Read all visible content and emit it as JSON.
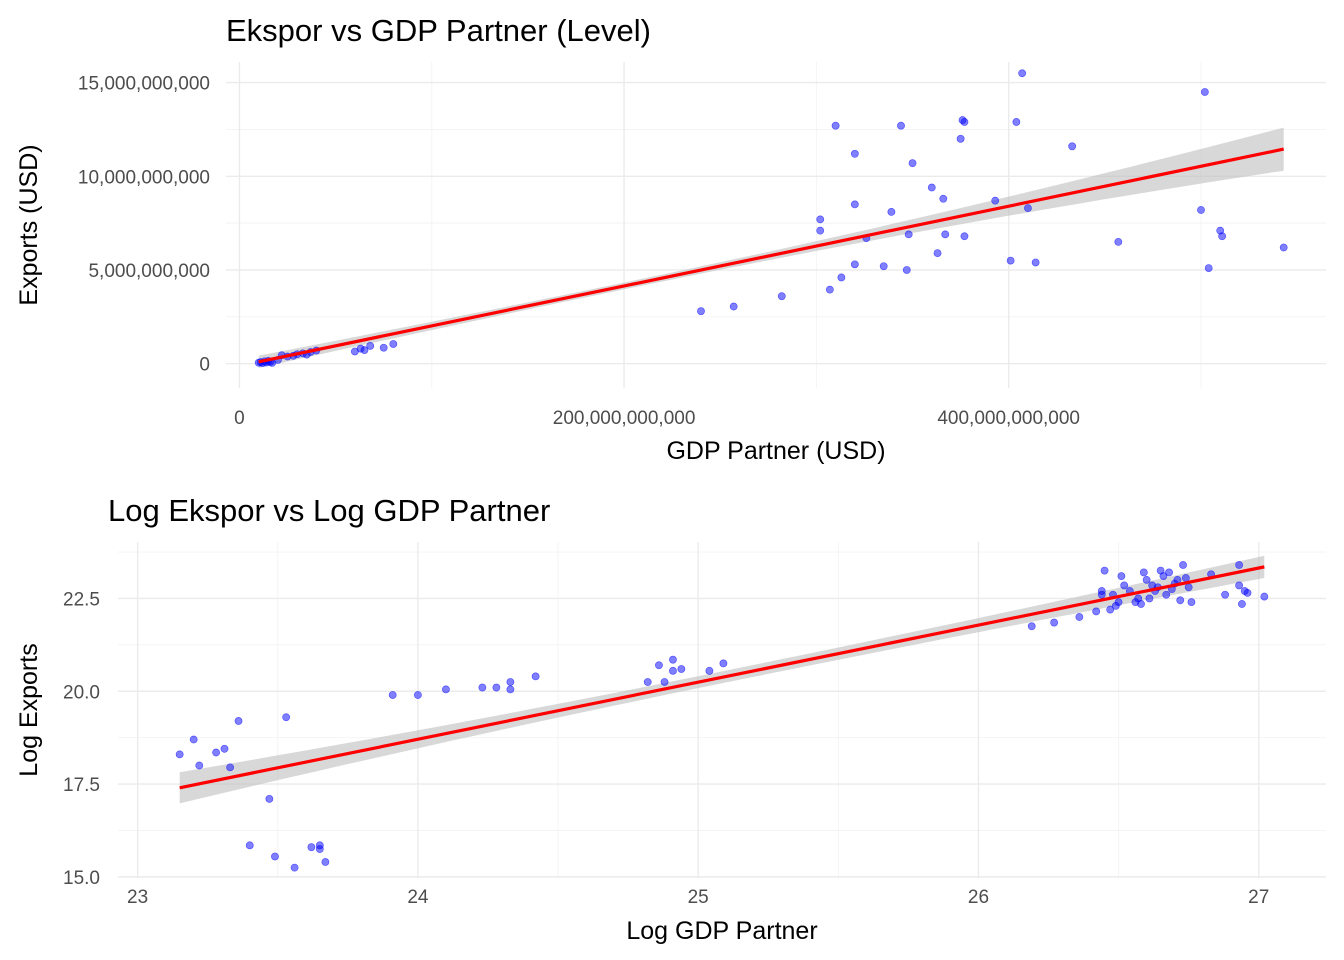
{
  "chart_data": [
    {
      "type": "scatter",
      "title": "Ekspor vs GDP Partner (Level)",
      "xlabel": "GDP Partner (USD)",
      "ylabel": "Exports (USD)",
      "xlim": [
        -7000000000,
        565000000000
      ],
      "ylim": [
        -1300000000,
        16100000000
      ],
      "x_ticks": [
        0,
        200000000000,
        400000000000
      ],
      "x_tick_labels": [
        "0",
        "200,000,000,000",
        "400,000,000,000"
      ],
      "x_minor": [
        100000000000,
        300000000000,
        500000000000
      ],
      "y_ticks": [
        0,
        5000000000,
        10000000000,
        15000000000
      ],
      "y_tick_labels": [
        "0",
        "5,000,000,000",
        "10,000,000,000",
        "15,000,000,000"
      ],
      "y_minor": [
        2500000000,
        7500000000,
        12500000000
      ],
      "grid": true,
      "point_color": "#0000ff",
      "line_color": "#ff0000",
      "ribbon_color": "#bebebe",
      "points": [
        [
          10000000000,
          50000000
        ],
        [
          11000000000,
          80000000
        ],
        [
          12000000000,
          30000000
        ],
        [
          13000000000,
          120000000
        ],
        [
          14000000000,
          60000000
        ],
        [
          15000000000,
          150000000
        ],
        [
          16000000000,
          90000000
        ],
        [
          17000000000,
          40000000
        ],
        [
          20000000000,
          200000000
        ],
        [
          22000000000,
          450000000
        ],
        [
          25000000000,
          380000000
        ],
        [
          28000000000,
          420000000
        ],
        [
          30000000000,
          500000000
        ],
        [
          33000000000,
          550000000
        ],
        [
          35000000000,
          480000000
        ],
        [
          37000000000,
          620000000
        ],
        [
          40000000000,
          700000000
        ],
        [
          60000000000,
          650000000
        ],
        [
          63000000000,
          800000000
        ],
        [
          65000000000,
          720000000
        ],
        [
          68000000000,
          950000000
        ],
        [
          75000000000,
          850000000
        ],
        [
          80000000000,
          1050000000
        ],
        [
          240000000000,
          2800000000
        ],
        [
          257000000000,
          3050000000
        ],
        [
          282000000000,
          3600000000
        ],
        [
          302000000000,
          7700000000
        ],
        [
          302000000000,
          7100000000
        ],
        [
          307000000000,
          3950000000
        ],
        [
          310000000000,
          12700000000
        ],
        [
          313000000000,
          4600000000
        ],
        [
          320000000000,
          5300000000
        ],
        [
          320000000000,
          11200000000
        ],
        [
          320000000000,
          8500000000
        ],
        [
          326000000000,
          6700000000
        ],
        [
          335000000000,
          5200000000
        ],
        [
          339000000000,
          8100000000
        ],
        [
          344000000000,
          12700000000
        ],
        [
          347000000000,
          5000000000
        ],
        [
          348000000000,
          6900000000
        ],
        [
          350000000000,
          10700000000
        ],
        [
          360000000000,
          9400000000
        ],
        [
          363000000000,
          5900000000
        ],
        [
          366000000000,
          8800000000
        ],
        [
          367000000000,
          6900000000
        ],
        [
          375000000000,
          12000000000
        ],
        [
          376000000000,
          13000000000
        ],
        [
          377000000000,
          12900000000
        ],
        [
          377000000000,
          6800000000
        ],
        [
          393000000000,
          8700000000
        ],
        [
          401000000000,
          5500000000
        ],
        [
          404000000000,
          12900000000
        ],
        [
          407000000000,
          15500000000
        ],
        [
          410000000000,
          8300000000
        ],
        [
          414000000000,
          5400000000
        ],
        [
          433000000000,
          11600000000
        ],
        [
          457000000000,
          6500000000
        ],
        [
          500000000000,
          8200000000
        ],
        [
          502000000000,
          14500000000
        ],
        [
          504000000000,
          5100000000
        ],
        [
          510000000000,
          7100000000
        ],
        [
          511000000000,
          6800000000
        ],
        [
          543000000000,
          6200000000
        ]
      ],
      "fit_start": [
        10000000000,
        100000000
      ],
      "fit_end": [
        543000000000,
        11450000000
      ],
      "se_start": 330000000,
      "se_mid": 180000000,
      "se_end": 1150000000,
      "x_center": 200000000000
    },
    {
      "type": "scatter",
      "title": "Log Ekspor vs Log GDP Partner",
      "xlabel": "Log GDP Partner",
      "ylabel": "Log Exports",
      "xlim": [
        22.93,
        27.24
      ],
      "ylim": [
        14.97,
        24.02
      ],
      "x_ticks": [
        23,
        24,
        25,
        26,
        27
      ],
      "x_tick_labels": [
        "23",
        "24",
        "25",
        "26",
        "27"
      ],
      "x_minor": [
        23.5,
        24.5,
        25.5,
        26.5
      ],
      "y_ticks": [
        15,
        17.5,
        20,
        22.5
      ],
      "y_tick_labels": [
        "15.0",
        "17.5",
        "20.0",
        "22.5"
      ],
      "y_minor": [
        16.25,
        18.75,
        21.25,
        23.75
      ],
      "grid": true,
      "point_color": "#0000ff",
      "line_color": "#ff0000",
      "ribbon_color": "#bebebe",
      "points": [
        [
          23.15,
          18.3
        ],
        [
          23.2,
          18.7
        ],
        [
          23.22,
          18.0
        ],
        [
          23.28,
          18.35
        ],
        [
          23.31,
          18.45
        ],
        [
          23.33,
          17.95
        ],
        [
          23.36,
          19.2
        ],
        [
          23.4,
          15.85
        ],
        [
          23.47,
          17.1
        ],
        [
          23.49,
          15.55
        ],
        [
          23.53,
          19.3
        ],
        [
          23.56,
          15.25
        ],
        [
          23.62,
          15.8
        ],
        [
          23.65,
          15.75
        ],
        [
          23.65,
          15.85
        ],
        [
          23.67,
          15.4
        ],
        [
          23.91,
          19.9
        ],
        [
          24.0,
          19.9
        ],
        [
          24.1,
          20.05
        ],
        [
          24.23,
          20.1
        ],
        [
          24.28,
          20.1
        ],
        [
          24.33,
          20.25
        ],
        [
          24.33,
          20.05
        ],
        [
          24.42,
          20.4
        ],
        [
          24.82,
          20.25
        ],
        [
          24.86,
          20.7
        ],
        [
          24.88,
          20.25
        ],
        [
          24.91,
          20.55
        ],
        [
          24.91,
          20.85
        ],
        [
          24.94,
          20.6
        ],
        [
          25.04,
          20.55
        ],
        [
          25.09,
          20.75
        ],
        [
          26.19,
          21.75
        ],
        [
          26.27,
          21.85
        ],
        [
          26.36,
          22.0
        ],
        [
          26.42,
          22.15
        ],
        [
          26.44,
          22.6
        ],
        [
          26.44,
          22.7
        ],
        [
          26.45,
          23.25
        ],
        [
          26.47,
          22.2
        ],
        [
          26.48,
          22.6
        ],
        [
          26.49,
          22.3
        ],
        [
          26.5,
          22.4
        ],
        [
          26.51,
          23.1
        ],
        [
          26.52,
          22.85
        ],
        [
          26.54,
          22.7
        ],
        [
          26.56,
          22.4
        ],
        [
          26.57,
          22.5
        ],
        [
          26.58,
          22.35
        ],
        [
          26.59,
          23.2
        ],
        [
          26.6,
          23.0
        ],
        [
          26.61,
          22.5
        ],
        [
          26.62,
          22.85
        ],
        [
          26.63,
          22.7
        ],
        [
          26.64,
          22.8
        ],
        [
          26.65,
          23.25
        ],
        [
          26.66,
          23.1
        ],
        [
          26.67,
          22.6
        ],
        [
          26.68,
          23.2
        ],
        [
          26.69,
          22.75
        ],
        [
          26.7,
          22.9
        ],
        [
          26.71,
          23.0
        ],
        [
          26.72,
          22.45
        ],
        [
          26.73,
          23.4
        ],
        [
          26.74,
          23.05
        ],
        [
          26.75,
          22.8
        ],
        [
          26.76,
          22.4
        ],
        [
          26.83,
          23.15
        ],
        [
          26.88,
          22.6
        ],
        [
          26.93,
          23.4
        ],
        [
          26.93,
          22.85
        ],
        [
          26.94,
          22.35
        ],
        [
          26.95,
          22.7
        ],
        [
          26.96,
          22.65
        ],
        [
          27.02,
          22.55
        ]
      ],
      "fit_start": [
        23.15,
        17.4
      ],
      "fit_end": [
        27.02,
        23.35
      ],
      "se_start": 0.42,
      "se_mid": 0.16,
      "se_end": 0.3,
      "x_center": 25.1
    }
  ]
}
